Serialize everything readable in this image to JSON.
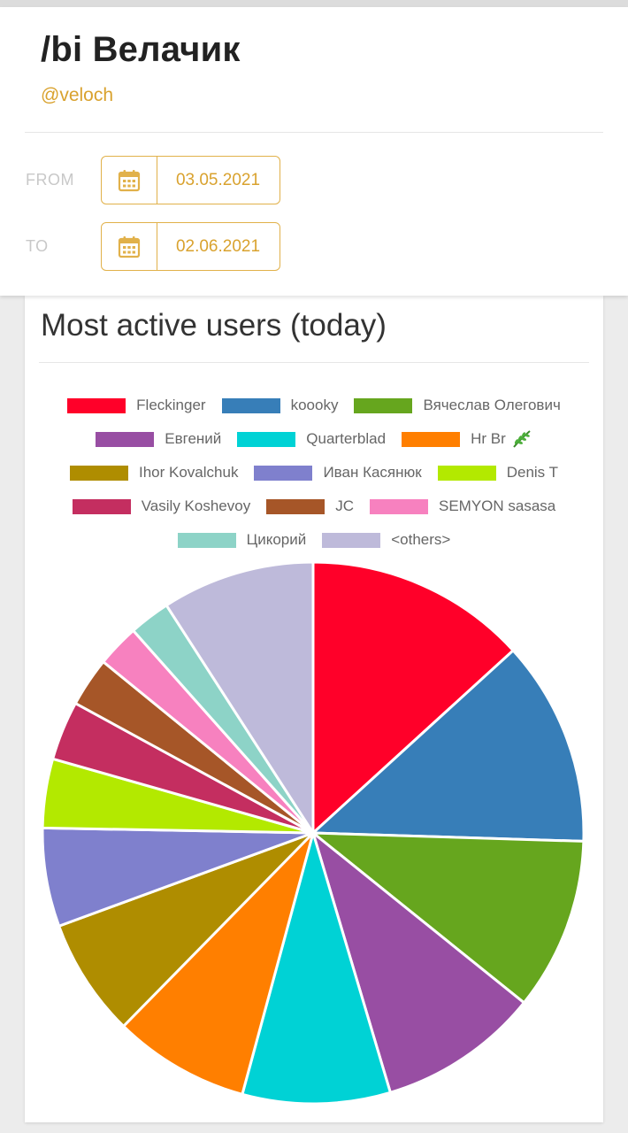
{
  "header": {
    "title": "/bi Велачик",
    "handle": "@veloch",
    "from_label": "FROM",
    "to_label": "TO",
    "from_date": "03.05.2021",
    "to_date": "02.06.2021",
    "accent_color": "#d9a22e"
  },
  "chart_section": {
    "title": "Most active users (today)"
  },
  "chart_data": {
    "type": "pie",
    "title": "Most active users (today)",
    "legend_position": "top",
    "unit": "percent share (estimated)",
    "slices": [
      {
        "name": "Fleckinger",
        "value": 13.5,
        "color": "#ff0029"
      },
      {
        "name": "koooky",
        "value": 12.5,
        "color": "#377eb8"
      },
      {
        "name": "Вячеслав Олегович",
        "value": 10.5,
        "color": "#66a61e"
      },
      {
        "name": "Евгений",
        "value": 9.8,
        "color": "#984ea3"
      },
      {
        "name": "Quarterblad",
        "value": 9.0,
        "color": "#00d2d5"
      },
      {
        "name": "Hr Br",
        "value": 8.3,
        "color": "#ff7f00"
      },
      {
        "name": "Ihor Kovalchuk",
        "value": 7.2,
        "color": "#af8d00"
      },
      {
        "name": "Иван Касянюк",
        "value": 6.0,
        "color": "#7f80cd"
      },
      {
        "name": "Denis T",
        "value": 4.2,
        "color": "#b3e900"
      },
      {
        "name": "Vasily Koshevoy",
        "value": 3.6,
        "color": "#c42e60"
      },
      {
        "name": "JC",
        "value": 3.0,
        "color": "#a65628"
      },
      {
        "name": "SEMYON sasasa",
        "value": 2.6,
        "color": "#f781bf"
      },
      {
        "name": "Цикорий",
        "value": 2.5,
        "color": "#8dd3c7"
      },
      {
        "name": "<others>",
        "value": 9.3,
        "color": "#bebada"
      }
    ]
  }
}
